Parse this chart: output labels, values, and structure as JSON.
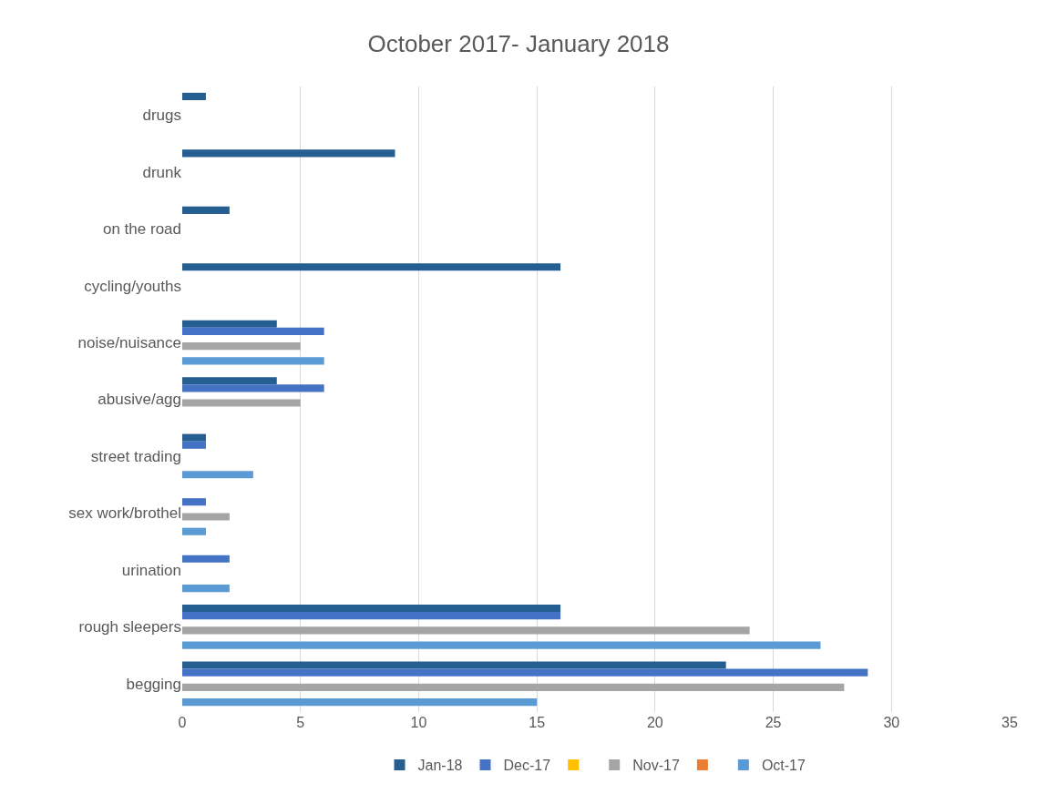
{
  "chart_data": {
    "type": "bar",
    "orientation": "horizontal",
    "title": "October 2017- January 2018",
    "categories": [
      "drugs",
      "drunk",
      "on the road",
      "cycling/youths",
      "noise/nuisance",
      "abusive/agg",
      "street trading",
      "sex work/brothel",
      "urination",
      "rough sleepers",
      "begging"
    ],
    "series": [
      {
        "name": "Jan-18",
        "color": "#255e91",
        "values": [
          1,
          9,
          2,
          16,
          4,
          4,
          1,
          null,
          null,
          16,
          23
        ]
      },
      {
        "name": "Dec-17",
        "color": "#4472c4",
        "values": [
          null,
          null,
          null,
          null,
          6,
          6,
          1,
          1,
          2,
          16,
          29
        ]
      },
      {
        "color": "#ffc000",
        "values": [
          null,
          null,
          null,
          null,
          null,
          null,
          null,
          null,
          null,
          null,
          null
        ]
      },
      {
        "name": "Nov-17",
        "color": "#a5a5a5",
        "values": [
          null,
          null,
          null,
          null,
          5,
          5,
          null,
          2,
          null,
          24,
          28
        ]
      },
      {
        "color": "#ed7d31",
        "values": [
          null,
          null,
          null,
          null,
          null,
          null,
          null,
          null,
          null,
          null,
          null
        ]
      },
      {
        "name": "Oct-17",
        "color": "#5b9bd5",
        "values": [
          null,
          null,
          null,
          null,
          6,
          null,
          3,
          1,
          2,
          27,
          15
        ]
      }
    ],
    "xlim": [
      0,
      35
    ],
    "xticks": [
      0,
      5,
      10,
      15,
      20,
      25,
      30,
      35
    ],
    "grid": "x",
    "legend": "bottom"
  }
}
